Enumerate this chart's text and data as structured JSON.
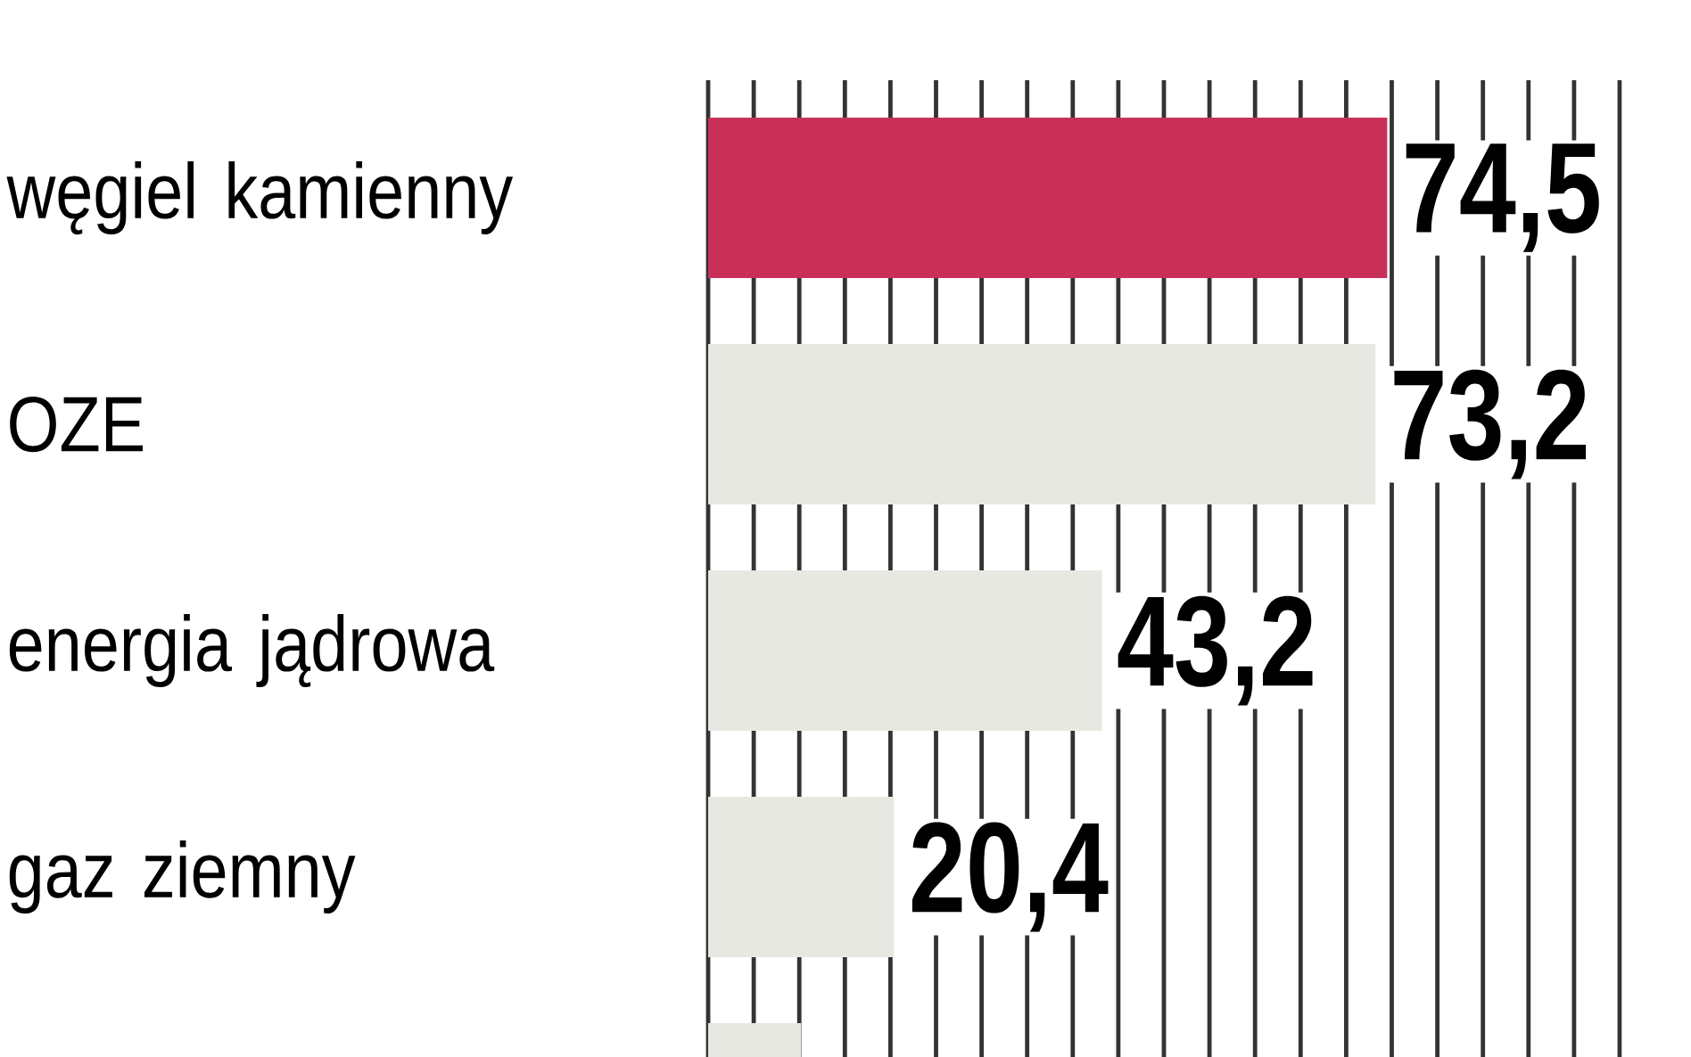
{
  "chart_data": {
    "type": "bar",
    "orientation": "horizontal",
    "categories": [
      "węgiel kamienny",
      "OZE",
      "energia jądrowa",
      "gaz ziemny",
      null
    ],
    "values": [
      74.5,
      73.2,
      43.2,
      20.4,
      10.2
    ],
    "value_labels": [
      "74,5",
      "73,2",
      "43,2",
      "20,4",
      null
    ],
    "colors": [
      "#c8305a",
      "#e8e8e2",
      "#e8e8e2",
      "#e8e8e2",
      "#e8e8e2"
    ],
    "xlim": [
      0,
      100
    ],
    "grid": "x"
  }
}
